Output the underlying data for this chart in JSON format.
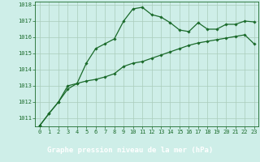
{
  "title": "Graphe pression niveau de la mer (hPa)",
  "background_color": "#ceeee8",
  "plot_bg_color": "#ceeee8",
  "label_bg_color": "#2a6a3a",
  "grid_color": "#aaccbb",
  "line_color": "#1a6a2a",
  "marker_color": "#1a6a2a",
  "x_values": [
    0,
    1,
    2,
    3,
    4,
    5,
    6,
    7,
    8,
    9,
    10,
    11,
    12,
    13,
    14,
    15,
    16,
    17,
    18,
    19,
    20,
    21,
    22,
    23
  ],
  "y_line1": [
    1010.55,
    1011.3,
    1012.0,
    1012.8,
    1013.15,
    1014.4,
    1015.3,
    1015.6,
    1015.9,
    1017.0,
    1017.75,
    1017.85,
    1017.4,
    1017.25,
    1016.9,
    1016.45,
    1016.35,
    1016.9,
    1016.5,
    1016.5,
    1016.8,
    1016.8,
    1017.0,
    1016.95
  ],
  "y_line2": [
    1010.55,
    1011.3,
    1012.0,
    1013.0,
    1013.15,
    1013.3,
    1013.4,
    1013.55,
    1013.75,
    1014.2,
    1014.4,
    1014.5,
    1014.7,
    1014.9,
    1015.1,
    1015.3,
    1015.5,
    1015.65,
    1015.75,
    1015.85,
    1015.95,
    1016.05,
    1016.15,
    1015.6
  ],
  "ylim": [
    1010.5,
    1018.2
  ],
  "yticks": [
    1011,
    1012,
    1013,
    1014,
    1015,
    1016,
    1017,
    1018
  ],
  "xlim": [
    -0.5,
    23.5
  ],
  "xticks": [
    0,
    1,
    2,
    3,
    4,
    5,
    6,
    7,
    8,
    9,
    10,
    11,
    12,
    13,
    14,
    15,
    16,
    17,
    18,
    19,
    20,
    21,
    22,
    23
  ],
  "tick_fontsize": 5,
  "title_fontsize": 6.5,
  "title_color": "#ffffff",
  "axis_color": "#1a6a2a"
}
